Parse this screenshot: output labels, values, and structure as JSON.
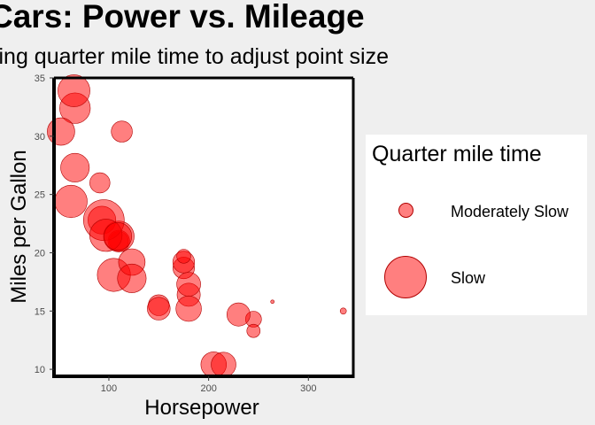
{
  "chart_data": {
    "type": "scatter",
    "title": "Cars: Power vs. Mileage",
    "subtitle": "sing quarter mile time to adjust point size",
    "xlabel": "Horsepower",
    "ylabel": "Miles per Gallon",
    "xlim": [
      45,
      345
    ],
    "ylim": [
      9.4,
      35
    ],
    "x_ticks": [
      100,
      200,
      300
    ],
    "y_ticks": [
      10,
      15,
      20,
      25,
      30,
      35
    ],
    "grid": false,
    "legend": {
      "title": "Quarter mile time",
      "position": "right",
      "entries": [
        "Moderately Slow",
        "Slow"
      ]
    },
    "color": "#ff0000",
    "points": [
      {
        "x": 110,
        "y": 21.0,
        "qsec": 16.46
      },
      {
        "x": 110,
        "y": 21.0,
        "qsec": 17.02
      },
      {
        "x": 93,
        "y": 22.8,
        "qsec": 18.61
      },
      {
        "x": 110,
        "y": 21.4,
        "qsec": 19.44
      },
      {
        "x": 175,
        "y": 18.7,
        "qsec": 17.02
      },
      {
        "x": 105,
        "y": 18.1,
        "qsec": 20.22
      },
      {
        "x": 245,
        "y": 14.3,
        "qsec": 15.84
      },
      {
        "x": 62,
        "y": 24.4,
        "qsec": 20.0
      },
      {
        "x": 95,
        "y": 22.8,
        "qsec": 22.9
      },
      {
        "x": 123,
        "y": 19.2,
        "qsec": 18.3
      },
      {
        "x": 123,
        "y": 17.8,
        "qsec": 18.9
      },
      {
        "x": 180,
        "y": 16.4,
        "qsec": 17.4
      },
      {
        "x": 180,
        "y": 17.3,
        "qsec": 17.6
      },
      {
        "x": 180,
        "y": 15.2,
        "qsec": 18.0
      },
      {
        "x": 205,
        "y": 10.4,
        "qsec": 17.98
      },
      {
        "x": 215,
        "y": 10.4,
        "qsec": 17.82
      },
      {
        "x": 230,
        "y": 14.7,
        "qsec": 17.42
      },
      {
        "x": 66,
        "y": 32.4,
        "qsec": 19.47
      },
      {
        "x": 52,
        "y": 30.4,
        "qsec": 18.52
      },
      {
        "x": 65,
        "y": 33.9,
        "qsec": 19.9
      },
      {
        "x": 97,
        "y": 21.5,
        "qsec": 20.01
      },
      {
        "x": 150,
        "y": 15.5,
        "qsec": 16.87
      },
      {
        "x": 150,
        "y": 15.2,
        "qsec": 17.3
      },
      {
        "x": 245,
        "y": 13.3,
        "qsec": 15.41
      },
      {
        "x": 175,
        "y": 19.2,
        "qsec": 17.05
      },
      {
        "x": 66,
        "y": 27.3,
        "qsec": 18.9
      },
      {
        "x": 91,
        "y": 26.0,
        "qsec": 16.7
      },
      {
        "x": 113,
        "y": 30.4,
        "qsec": 16.9
      },
      {
        "x": 264,
        "y": 15.8,
        "qsec": 14.5
      },
      {
        "x": 175,
        "y": 19.7,
        "qsec": 15.5
      },
      {
        "x": 335,
        "y": 15.0,
        "qsec": 14.6
      },
      {
        "x": 109,
        "y": 21.4,
        "qsec": 18.6
      }
    ]
  }
}
